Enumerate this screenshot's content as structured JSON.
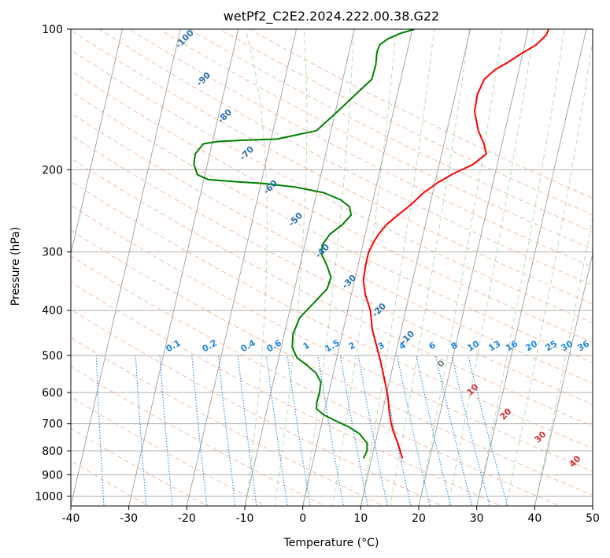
{
  "chart_data": {
    "type": "line",
    "title": "wetPf2_C2E2.2024.222.00.38.G22",
    "xlabel": "Temperature (°C)",
    "ylabel": "Pressure (hPa)",
    "xlim": [
      -40,
      50
    ],
    "ylim": [
      1050,
      100
    ],
    "y_scale": "log",
    "x_ticks": [
      "-40",
      "-30",
      "-20",
      "-10",
      "0",
      "10",
      "20",
      "30",
      "40",
      "50"
    ],
    "y_ticks": [
      "100",
      "200",
      "300",
      "400",
      "500",
      "600",
      "700",
      "800",
      "900",
      "1000"
    ],
    "grid": true,
    "series": [
      {
        "color": "#ff0000",
        "x": [
          15.3,
          13.9,
          12.6,
          11.8,
          11.1,
          10.3,
          9.0,
          7.7,
          6.5,
          5.0,
          3.9,
          2.4,
          1.5,
          1.3,
          1.3,
          1.8,
          2.3,
          3.3,
          4.9,
          6.8,
          8.3,
          10.5,
          12.8,
          15.8,
          17.7,
          16.9,
          15.4,
          14.0,
          13.8,
          14.4,
          15.9,
          17.7,
          19.7,
          22.0,
          23.3,
          23.5
        ],
        "y": [
          830,
          770,
          725,
          690,
          655,
          610,
          560,
          515,
          480,
          440,
          400,
          370,
          345,
          320,
          300,
          285,
          275,
          262,
          250,
          237,
          225,
          213,
          204,
          195,
          185,
          176,
          165,
          150,
          138,
          128,
          122,
          118,
          113,
          108,
          103,
          100
        ]
      },
      {
        "color": "#008000",
        "x": [
          8.6,
          8.9,
          8.6,
          6.9,
          4.7,
          2.3,
          0.0,
          -1.5,
          -1.7,
          -1.6,
          -1.8,
          -3.0,
          -4.8,
          -6.9,
          -8.1,
          -8.5,
          -8.0,
          -6.1,
          -4.4,
          -4.2,
          -5.4,
          -6.6,
          -7.0,
          -6.1,
          -4.3,
          -3.2,
          -3.8,
          -5.6,
          -8.8,
          -13.8,
          -19.6,
          -25.0,
          -29.2,
          -31.3,
          -32.3,
          -32.5,
          -31.5,
          -29.0,
          -25.0,
          -19.0,
          -12.5,
          -9.6,
          -7.0,
          -5.0,
          -4.9,
          -5.2,
          -5.0,
          -3.9,
          -1.8,
          0.4
        ],
        "y": [
          830,
          800,
          770,
          735,
          710,
          690,
          670,
          650,
          630,
          600,
          570,
          545,
          525,
          505,
          480,
          450,
          415,
          385,
          360,
          340,
          320,
          305,
          290,
          275,
          262,
          250,
          240,
          232,
          224,
          218,
          214,
          212,
          210,
          205,
          195,
          185,
          176,
          174,
          173,
          172,
          165,
          150,
          137,
          128,
          119,
          112,
          108,
          105,
          102,
          100
        ]
      }
    ],
    "dry_adiabats_labels": [
      "-100",
      "-90",
      "-80",
      "-70",
      "-60",
      "-50",
      "-40",
      "-30",
      "-20",
      "-10"
    ],
    "mixing_ratio_labels": [
      "0.1",
      "0.2",
      "0.4",
      "0.6",
      "1",
      "1.5",
      "2",
      "3",
      "4",
      "6",
      "8",
      "10",
      "13",
      "16",
      "20",
      "25",
      "30",
      "36"
    ],
    "moist_adiabat_labels": [
      "0",
      "10",
      "20",
      "30",
      "40"
    ]
  }
}
